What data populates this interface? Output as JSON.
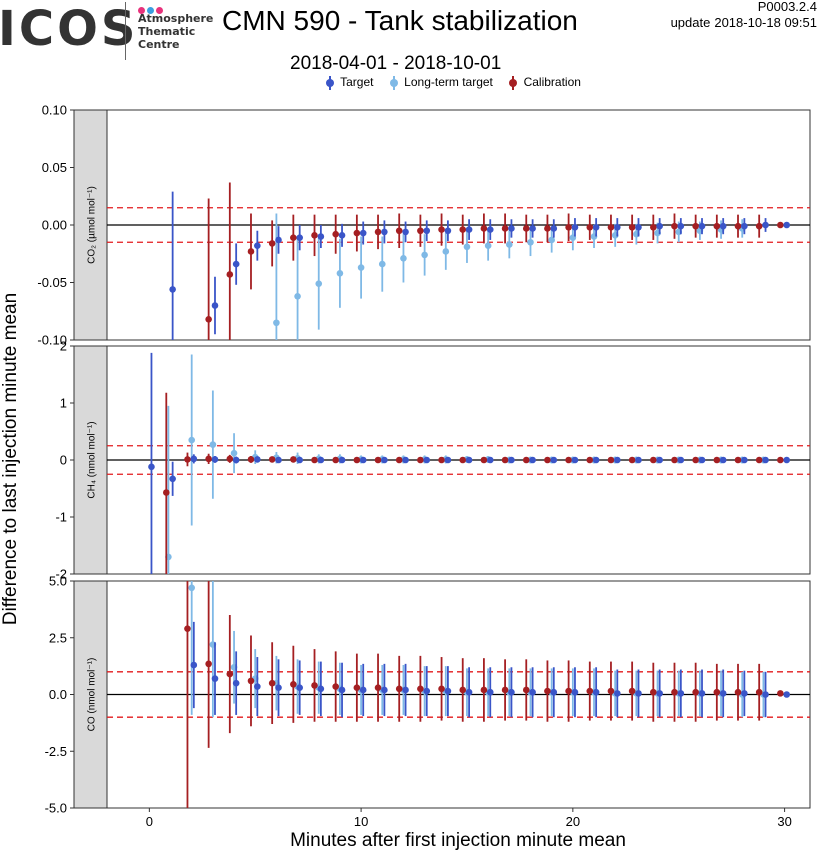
{
  "header": {
    "logo_text": "ICOS",
    "logo_subtitle": [
      "Atmosphere",
      "Thematic",
      "Centre"
    ],
    "title": "CMN 590 - Tank stabilization",
    "date_range": "2018-04-01 - 2018-10-01",
    "version": "P0003.2.4",
    "update_label": "update",
    "update_time": "2018-10-18 09:51"
  },
  "colors": {
    "target": "#3a55c8",
    "long_term_target": "#7fb9e6",
    "calibration": "#a51f22",
    "threshold": "#e31a1c",
    "logo_dots": [
      "#e8327c",
      "#3b9fe0",
      "#e8327c"
    ]
  },
  "chart_data": {
    "type": "scatter",
    "title": "CMN 590 - Tank stabilization",
    "xlabel": "Minutes after first injection minute mean",
    "ylabel": "Difference to last injection minute mean",
    "xlim": [
      -2,
      31.2
    ],
    "x_ticks": [
      "0",
      "10",
      "20",
      "30"
    ],
    "grid": false,
    "legend_position": "top",
    "legend": [
      "Target",
      "Long-term target",
      "Calibration"
    ],
    "panels": [
      {
        "strip_label": "CO₂ (µmol mol⁻¹)",
        "ylim": [
          -0.1,
          0.1
        ],
        "y_ticks": [
          "0.10",
          "0.05",
          "0.00",
          "-0.05",
          "-0.10"
        ],
        "y_tick_values": [
          0.1,
          0.05,
          0,
          -0.05,
          -0.1
        ],
        "threshold": 0.015,
        "series": [
          {
            "name": "Target",
            "x": [
              1.1,
              3.1,
              4.1,
              5.1,
              6.1,
              7.1,
              8.1,
              9.1,
              10.1,
              11.1,
              12.1,
              13.1,
              14.1,
              15.1,
              16.1,
              17.1,
              18.1,
              19.1,
              20.1,
              21.1,
              22.1,
              23.1,
              24.1,
              25.1,
              26.1,
              27.1,
              28.1,
              29.1,
              30.1
            ],
            "y": [
              -0.056,
              -0.07,
              -0.034,
              -0.018,
              -0.013,
              -0.011,
              -0.01,
              -0.009,
              -0.007,
              -0.006,
              -0.006,
              -0.005,
              -0.005,
              -0.004,
              -0.004,
              -0.003,
              -0.003,
              -0.003,
              -0.002,
              -0.002,
              -0.002,
              -0.002,
              -0.001,
              -0.001,
              -0.001,
              -0.001,
              -0.001,
              0,
              0
            ],
            "err": [
              0.085,
              0.025,
              0.018,
              0.013,
              0.012,
              0.011,
              0.01,
              0.01,
              0.01,
              0.01,
              0.009,
              0.009,
              0.009,
              0.009,
              0.009,
              0.008,
              0.008,
              0.008,
              0.008,
              0.008,
              0.008,
              0.008,
              0.007,
              0.007,
              0.007,
              0.007,
              0.007,
              0.006,
              0.002
            ]
          },
          {
            "name": "Long-term target",
            "x": [
              6.0,
              7.0,
              8.0,
              9.0,
              10.0,
              11.0,
              12.0,
              13.0,
              14.0,
              15.0,
              16.0,
              17.0,
              18.0,
              19.0,
              20.0,
              21.0,
              22.0,
              23.0,
              24.0,
              25.0,
              26.0,
              27.0,
              28.0
            ],
            "y": [
              -0.085,
              -0.062,
              -0.051,
              -0.042,
              -0.037,
              -0.034,
              -0.029,
              -0.026,
              -0.023,
              -0.019,
              -0.018,
              -0.017,
              -0.015,
              -0.013,
              -0.011,
              -0.01,
              -0.009,
              -0.008,
              -0.007,
              -0.006,
              -0.005,
              -0.004,
              -0.003
            ],
            "err": [
              0.095,
              0.05,
              0.04,
              0.03,
              0.027,
              0.024,
              0.021,
              0.018,
              0.016,
              0.014,
              0.013,
              0.012,
              0.012,
              0.011,
              0.011,
              0.01,
              0.01,
              0.009,
              0.009,
              0.009,
              0.008,
              0.008,
              0.008
            ]
          },
          {
            "name": "Calibration",
            "x": [
              2.8,
              3.8,
              4.8,
              5.8,
              6.8,
              7.8,
              8.8,
              9.8,
              10.8,
              11.8,
              12.8,
              13.8,
              14.8,
              15.8,
              16.8,
              17.8,
              18.8,
              19.8,
              20.8,
              21.8,
              22.8,
              23.8,
              24.8,
              25.8,
              26.8,
              27.8,
              28.8,
              29.8
            ],
            "y": [
              -0.082,
              -0.043,
              -0.023,
              -0.016,
              -0.011,
              -0.009,
              -0.008,
              -0.007,
              -0.006,
              -0.005,
              -0.005,
              -0.004,
              -0.004,
              -0.003,
              -0.003,
              -0.003,
              -0.003,
              -0.002,
              -0.002,
              -0.002,
              -0.002,
              -0.002,
              -0.001,
              -0.001,
              -0.001,
              -0.001,
              -0.001,
              0
            ],
            "err": [
              0.105,
              0.08,
              0.033,
              0.02,
              0.02,
              0.018,
              0.017,
              0.016,
              0.015,
              0.015,
              0.014,
              0.014,
              0.013,
              0.013,
              0.013,
              0.012,
              0.012,
              0.012,
              0.011,
              0.011,
              0.011,
              0.011,
              0.011,
              0.01,
              0.01,
              0.01,
              0.01,
              0.002
            ]
          }
        ]
      },
      {
        "strip_label": "CH₄ (nmol mol⁻¹)",
        "ylim": [
          -2,
          2
        ],
        "y_ticks": [
          "2",
          "1",
          "0",
          "-1",
          "-2"
        ],
        "y_tick_values": [
          2,
          1,
          0,
          -1,
          -2
        ],
        "threshold": 0.25,
        "series": [
          {
            "name": "Target",
            "x": [
              0.1,
              1.1,
              2.1,
              3.1,
              4.1,
              5.1,
              6.1,
              7.1,
              8.1,
              9.1,
              10.1,
              11.1,
              12.1,
              13.1,
              14.1,
              15.1,
              16.1,
              17.1,
              18.1,
              19.1,
              20.1,
              21.1,
              22.1,
              23.1,
              24.1,
              25.1,
              26.1,
              27.1,
              28.1,
              29.1,
              30.1
            ],
            "y": [
              -0.12,
              -0.33,
              0.02,
              0.01,
              0.0,
              0.01,
              0.0,
              0.0,
              0.0,
              0.0,
              0.0,
              0.0,
              0.0,
              0.0,
              0.0,
              0.0,
              0.0,
              0.0,
              0.0,
              0.0,
              0.0,
              0.0,
              0.0,
              0.0,
              0.0,
              0.0,
              0.0,
              0.0,
              0.0,
              0.0,
              0.0
            ],
            "err": [
              2.0,
              0.3,
              0.08,
              0.06,
              0.06,
              0.05,
              0.05,
              0.05,
              0.05,
              0.05,
              0.05,
              0.05,
              0.05,
              0.05,
              0.05,
              0.05,
              0.05,
              0.05,
              0.05,
              0.05,
              0.05,
              0.05,
              0.05,
              0.05,
              0.05,
              0.05,
              0.05,
              0.05,
              0.05,
              0.05,
              0.02
            ]
          },
          {
            "name": "Long-term target",
            "x": [
              0.9,
              2.0,
              3.0,
              4.0,
              5.0,
              6.0,
              7.0,
              8.0,
              9.0,
              10.0,
              11.0,
              12.0,
              13.0,
              14.0,
              15.0,
              16.0,
              17.0,
              18.0,
              19.0,
              20.0,
              21.0,
              22.0,
              23.0,
              24.0,
              25.0,
              26.0,
              27.0,
              28.0,
              29.0
            ],
            "y": [
              -1.7,
              0.35,
              0.27,
              0.12,
              0.05,
              0.04,
              0.03,
              0.02,
              0.02,
              0.01,
              0.01,
              0.01,
              0.01,
              0.01,
              0.01,
              0.01,
              0.0,
              0.0,
              0.0,
              0.0,
              0.0,
              0.0,
              0.0,
              0.0,
              0.0,
              0.0,
              0.0,
              0.0,
              0.0
            ],
            "err": [
              2.65,
              1.5,
              0.95,
              0.35,
              0.12,
              0.1,
              0.1,
              0.08,
              0.08,
              0.07,
              0.07,
              0.07,
              0.07,
              0.07,
              0.06,
              0.06,
              0.06,
              0.06,
              0.06,
              0.06,
              0.06,
              0.06,
              0.06,
              0.06,
              0.06,
              0.06,
              0.06,
              0.06,
              0.06
            ]
          },
          {
            "name": "Calibration",
            "x": [
              0.8,
              1.8,
              2.8,
              3.8,
              4.8,
              5.8,
              6.8,
              7.8,
              8.8,
              9.8,
              10.8,
              11.8,
              12.8,
              13.8,
              14.8,
              15.8,
              16.8,
              17.8,
              18.8,
              19.8,
              20.8,
              21.8,
              22.8,
              23.8,
              24.8,
              25.8,
              26.8,
              27.8,
              28.8,
              29.8
            ],
            "y": [
              -0.57,
              0.01,
              0.02,
              0.02,
              0.01,
              0.01,
              0.01,
              0.0,
              0.0,
              0.0,
              0.0,
              0.0,
              0.0,
              0.0,
              0.0,
              0.0,
              0.0,
              0.0,
              0.0,
              0.0,
              0.0,
              0.0,
              0.0,
              0.0,
              0.0,
              0.0,
              0.0,
              0.0,
              0.0,
              0.0
            ],
            "err": [
              1.75,
              0.12,
              0.09,
              0.07,
              0.06,
              0.05,
              0.05,
              0.05,
              0.05,
              0.05,
              0.05,
              0.05,
              0.05,
              0.05,
              0.05,
              0.05,
              0.05,
              0.05,
              0.05,
              0.05,
              0.05,
              0.05,
              0.05,
              0.05,
              0.05,
              0.05,
              0.05,
              0.05,
              0.05,
              0.02
            ]
          }
        ]
      },
      {
        "strip_label": "CO (nmol mol⁻¹)",
        "ylim": [
          -5,
          5
        ],
        "y_ticks": [
          "5.0",
          "2.5",
          "0.0",
          "-2.5",
          "-5.0"
        ],
        "y_tick_values": [
          5,
          2.5,
          0,
          -2.5,
          -5
        ],
        "threshold": 1,
        "series": [
          {
            "name": "Target",
            "x": [
              2.1,
              3.1,
              4.1,
              5.1,
              6.1,
              7.1,
              8.1,
              9.1,
              10.1,
              11.1,
              12.1,
              13.1,
              14.1,
              15.1,
              16.1,
              17.1,
              18.1,
              19.1,
              20.1,
              21.1,
              22.1,
              23.1,
              24.1,
              25.1,
              26.1,
              27.1,
              28.1,
              29.1,
              30.1
            ],
            "y": [
              1.3,
              0.7,
              0.5,
              0.35,
              0.3,
              0.3,
              0.25,
              0.2,
              0.2,
              0.2,
              0.2,
              0.15,
              0.15,
              0.1,
              0.1,
              0.1,
              0.1,
              0.1,
              0.1,
              0.1,
              0.05,
              0.05,
              0.05,
              0.05,
              0.05,
              0.05,
              0.05,
              0.0,
              0.0
            ],
            "err": [
              1.9,
              1.6,
              1.4,
              1.3,
              1.25,
              1.2,
              1.2,
              1.2,
              1.15,
              1.15,
              1.15,
              1.1,
              1.1,
              1.1,
              1.1,
              1.1,
              1.1,
              1.1,
              1.1,
              1.1,
              1.05,
              1.05,
              1.05,
              1.05,
              1.05,
              1.05,
              1.0,
              1.0,
              0.1
            ]
          },
          {
            "name": "Long-term target",
            "x": [
              2.0,
              3.0,
              4.0,
              5.0,
              6.0,
              7.0,
              8.0,
              9.0,
              10.0,
              11.0,
              12.0,
              13.0,
              14.0,
              15.0,
              16.0,
              17.0,
              18.0,
              19.0,
              20.0,
              21.0,
              22.0,
              23.0,
              24.0,
              25.0,
              26.0,
              27.0,
              28.0,
              29.0
            ],
            "y": [
              4.7,
              2.2,
              1.2,
              0.7,
              0.5,
              0.35,
              0.3,
              0.25,
              0.2,
              0.2,
              0.2,
              0.15,
              0.15,
              0.1,
              0.1,
              0.1,
              0.1,
              0.1,
              0.1,
              0.1,
              0.05,
              0.05,
              0.05,
              0.05,
              0.05,
              0.05,
              0.0,
              0.0
            ],
            "err": [
              5.6,
              3.2,
              1.6,
              1.3,
              1.2,
              1.2,
              1.15,
              1.15,
              1.1,
              1.1,
              1.1,
              1.1,
              1.1,
              1.05,
              1.05,
              1.05,
              1.05,
              1.05,
              1.05,
              1.05,
              1.0,
              1.0,
              1.0,
              1.0,
              1.0,
              1.0,
              1.0,
              1.0
            ]
          },
          {
            "name": "Calibration",
            "x": [
              1.8,
              2.8,
              3.8,
              4.8,
              5.8,
              6.8,
              7.8,
              8.8,
              9.8,
              10.8,
              11.8,
              12.8,
              13.8,
              14.8,
              15.8,
              16.8,
              17.8,
              18.8,
              19.8,
              20.8,
              21.8,
              22.8,
              23.8,
              24.8,
              25.8,
              26.8,
              27.8,
              28.8,
              29.8
            ],
            "y": [
              2.9,
              1.35,
              0.9,
              0.6,
              0.5,
              0.45,
              0.4,
              0.35,
              0.3,
              0.3,
              0.25,
              0.25,
              0.25,
              0.2,
              0.2,
              0.2,
              0.2,
              0.15,
              0.15,
              0.15,
              0.15,
              0.15,
              0.1,
              0.1,
              0.1,
              0.1,
              0.1,
              0.1,
              0.05
            ],
            "err": [
              8.6,
              3.7,
              2.6,
              2.0,
              1.8,
              1.7,
              1.6,
              1.55,
              1.5,
              1.5,
              1.45,
              1.45,
              1.4,
              1.4,
              1.4,
              1.35,
              1.35,
              1.35,
              1.35,
              1.3,
              1.3,
              1.3,
              1.3,
              1.3,
              1.3,
              1.25,
              1.25,
              1.25,
              0.1
            ]
          }
        ]
      }
    ]
  }
}
